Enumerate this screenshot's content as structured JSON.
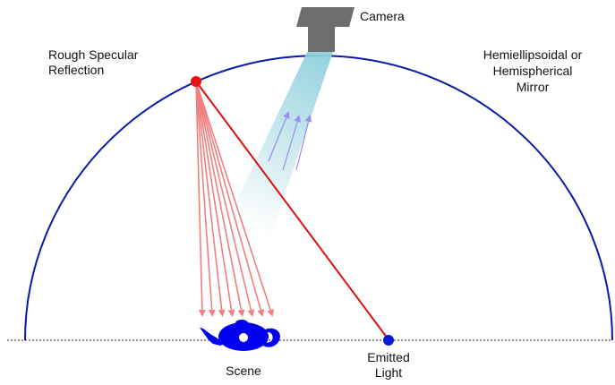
{
  "labels": {
    "camera": "Camera",
    "rough_specular_line1": "Rough Specular",
    "rough_specular_line2": "Reflection",
    "mirror_line1": "Hemiellipsoidal or",
    "mirror_line2": "Hemispherical",
    "mirror_line3": "Mirror",
    "scene": "Scene",
    "emitted_line1": "Emitted",
    "emitted_line2": "Light"
  },
  "colors": {
    "mirror": "#0a1aa8",
    "reflection_point": "#ee1111",
    "emitted_ray": "#dd1111",
    "reflected_rays": "#f08080",
    "camera_body": "#6e6e6e",
    "camera_beam": "#8fd0dc",
    "beam_arrows": "#9e8ef0",
    "teapot": "#0000ee",
    "light_source": "#0a1ad0"
  },
  "reflected_ray_count": 8
}
